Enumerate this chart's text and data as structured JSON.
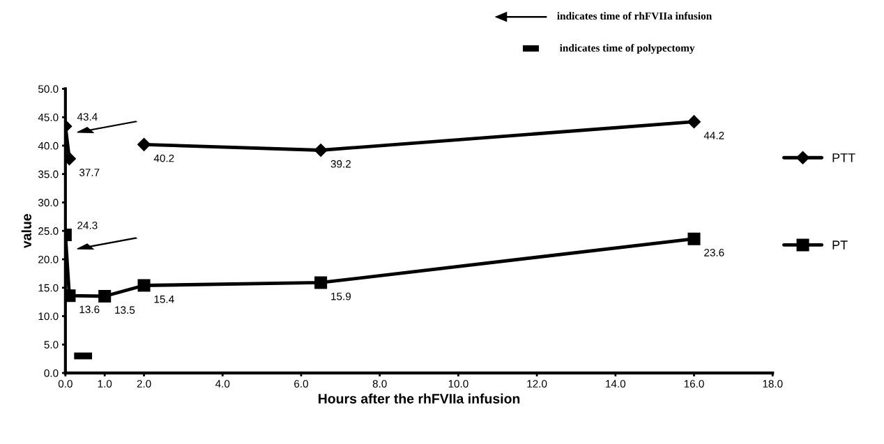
{
  "chart_data": {
    "type": "line",
    "xlabel": "Hours after the rhFVIIa infusion",
    "ylabel": "value",
    "annotations": [
      "indicates time of rhFVIIa infusion",
      "indicates time of polypectomy"
    ],
    "series": [
      {
        "name": "PTT",
        "color": "#000000",
        "marker": "diamond",
        "x": [
          0,
          0.1,
          1,
          2,
          6.5,
          16
        ],
        "values": [
          43.4,
          37.7,
          null,
          40.2,
          39.2,
          44.2
        ],
        "value_labels": [
          "43.4",
          "37.7",
          null,
          "40.2",
          "39.2",
          "44.2"
        ]
      },
      {
        "name": "PT",
        "color": "#000000",
        "marker": "square",
        "x": [
          0,
          0.1,
          1,
          2,
          6.5,
          16
        ],
        "values": [
          24.3,
          13.6,
          13.5,
          15.4,
          15.9,
          23.6
        ],
        "value_labels": [
          "24.3",
          "13.6",
          "13.5",
          "15.4",
          "15.9",
          "23.6"
        ]
      }
    ],
    "xlim": [
      0,
      18
    ],
    "xticks": [
      {
        "value": 0,
        "label": "0.0"
      },
      {
        "value": 1,
        "label": "1.0"
      },
      {
        "value": 2,
        "label": "2.0"
      },
      {
        "value": 4,
        "label": "4.0"
      },
      {
        "value": 6,
        "label": "6.0"
      },
      {
        "value": 8,
        "label": "8.0"
      },
      {
        "value": 10,
        "label": "10.0"
      },
      {
        "value": 12,
        "label": "12.0"
      },
      {
        "value": 14,
        "label": "14.0"
      },
      {
        "value": 16,
        "label": "16.0"
      },
      {
        "value": 18,
        "label": "18.0"
      }
    ],
    "ylim": [
      0,
      50
    ],
    "yticks": [
      {
        "value": 0,
        "label": "0.0"
      },
      {
        "value": 5,
        "label": "5.0"
      },
      {
        "value": 10,
        "label": "10.0"
      },
      {
        "value": 15,
        "label": "15.0"
      },
      {
        "value": 20,
        "label": "20.0"
      },
      {
        "value": 25,
        "label": "25.0"
      },
      {
        "value": 30,
        "label": "30.0"
      },
      {
        "value": 35,
        "label": "35.0"
      },
      {
        "value": 40,
        "label": "40.0"
      },
      {
        "value": 45,
        "label": "45.0"
      },
      {
        "value": 50,
        "label": "50.0"
      }
    ],
    "grid": false,
    "legend": "right",
    "line_style": "solid"
  }
}
